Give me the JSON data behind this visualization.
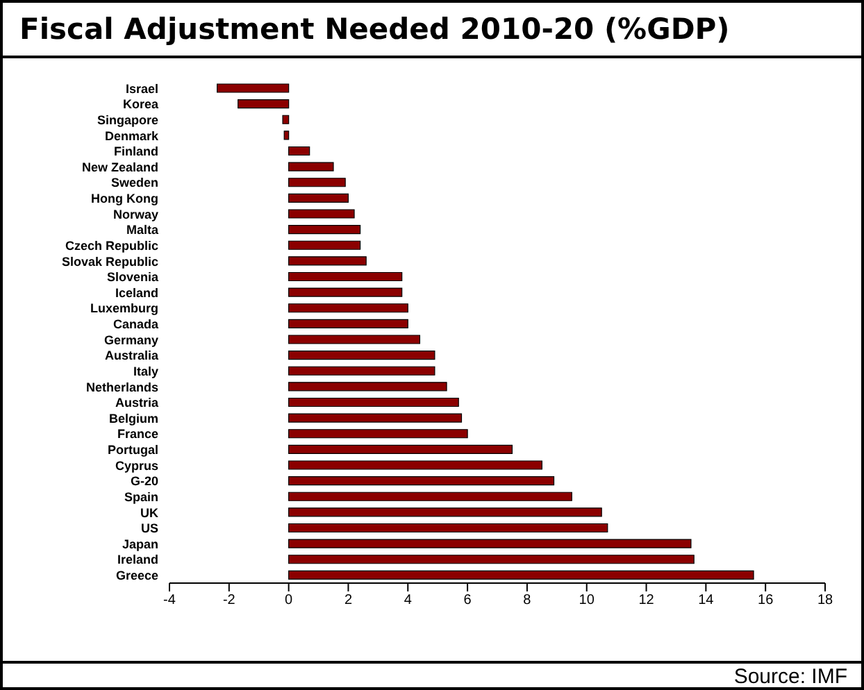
{
  "chart_data": {
    "type": "bar",
    "orientation": "horizontal",
    "title": "Fiscal Adjustment Needed 2010-20 (%GDP)",
    "categories": [
      "Israel",
      "Korea",
      "Singapore",
      "Denmark",
      "Finland",
      "New Zealand",
      "Sweden",
      "Hong Kong",
      "Norway",
      "Malta",
      "Czech Republic",
      "Slovak Republic",
      "Slovenia",
      "Iceland",
      "Luxemburg",
      "Canada",
      "Germany",
      "Australia",
      "Italy",
      "Netherlands",
      "Austria",
      "Belgium",
      "France",
      "Portugal",
      "Cyprus",
      "G-20",
      "Spain",
      "UK",
      "US",
      "Japan",
      "Ireland",
      "Greece"
    ],
    "values": [
      -2.4,
      -1.7,
      -0.2,
      -0.15,
      0.7,
      1.5,
      1.9,
      2.0,
      2.2,
      2.4,
      2.4,
      2.6,
      3.8,
      3.8,
      4.0,
      4.0,
      4.4,
      4.9,
      4.9,
      5.3,
      5.7,
      5.8,
      6.0,
      7.5,
      8.5,
      8.9,
      9.5,
      10.5,
      10.7,
      13.5,
      13.6,
      15.6
    ],
    "color": "#8b0000",
    "xlim": [
      -4,
      18
    ],
    "xticks": [
      -4,
      -2,
      0,
      2,
      4,
      6,
      8,
      10,
      12,
      14,
      16,
      18
    ],
    "grid": false,
    "legend": false,
    "annotations": [
      "Source: IMF"
    ]
  }
}
